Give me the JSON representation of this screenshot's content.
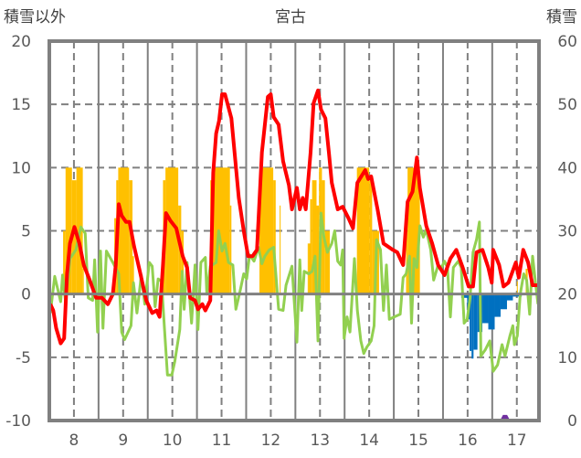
{
  "chart_data": {
    "type": "line",
    "title": "宮古",
    "ylabel_left": "積雪以外",
    "ylabel_right": "積雪",
    "xlim": [
      7.5,
      17.45
    ],
    "ylim_left": [
      -10,
      20
    ],
    "ylim_right": [
      0,
      60
    ],
    "yticks_left": [
      "20",
      "15",
      "10",
      "5",
      "0",
      "-5",
      "-10"
    ],
    "yticks_right": [
      "60",
      "50",
      "40",
      "30",
      "20",
      "10",
      "0"
    ],
    "xticks": [
      "8",
      "9",
      "10",
      "11",
      "12",
      "13",
      "14",
      "15",
      "16",
      "17"
    ],
    "grid": true,
    "colors": {
      "red": "#ff0000",
      "green": "#92d050",
      "orange": "#ffc000",
      "blue": "#0070c0",
      "purple": "#7030a0",
      "axis": "#808080"
    },
    "red_series": [
      [
        7.52,
        -0.8
      ],
      [
        7.58,
        -1.3
      ],
      [
        7.64,
        -2.7
      ],
      [
        7.73,
        -3.9
      ],
      [
        7.8,
        -3.5
      ],
      [
        7.86,
        1.6
      ],
      [
        7.92,
        4
      ],
      [
        8.01,
        5.3
      ],
      [
        8.11,
        4
      ],
      [
        8.2,
        2.3
      ],
      [
        8.32,
        1.1
      ],
      [
        8.45,
        -0.3
      ],
      [
        8.57,
        -0.3
      ],
      [
        8.69,
        -0.8
      ],
      [
        8.79,
        0
      ],
      [
        8.85,
        2.3
      ],
      [
        8.91,
        7.1
      ],
      [
        8.97,
        6.2
      ],
      [
        9.06,
        5.7
      ],
      [
        9.13,
        5.7
      ],
      [
        9.22,
        3.8
      ],
      [
        9.34,
        1.8
      ],
      [
        9.47,
        -0.5
      ],
      [
        9.59,
        -1.5
      ],
      [
        9.68,
        -1.3
      ],
      [
        9.74,
        -1.8
      ],
      [
        9.81,
        2.3
      ],
      [
        9.87,
        6.4
      ],
      [
        9.96,
        5.8
      ],
      [
        10.08,
        5.2
      ],
      [
        10.21,
        3.0
      ],
      [
        10.3,
        2.1
      ],
      [
        10.36,
        -0.3
      ],
      [
        10.46,
        -0.5
      ],
      [
        10.52,
        -1.2
      ],
      [
        10.61,
        -0.8
      ],
      [
        10.67,
        -1.3
      ],
      [
        10.77,
        -0.5
      ],
      [
        10.83,
        9.6
      ],
      [
        10.89,
        12.7
      ],
      [
        10.95,
        13.7
      ],
      [
        11.01,
        15.8
      ],
      [
        11.07,
        15.8
      ],
      [
        11.2,
        13.9
      ],
      [
        11.35,
        7.6
      ],
      [
        11.45,
        5
      ],
      [
        11.54,
        3.0
      ],
      [
        11.63,
        3.0
      ],
      [
        11.72,
        3.5
      ],
      [
        11.82,
        11.2
      ],
      [
        11.94,
        15.6
      ],
      [
        12.0,
        15.8
      ],
      [
        12.06,
        14
      ],
      [
        12.16,
        13.4
      ],
      [
        12.25,
        10.5
      ],
      [
        12.37,
        8.6
      ],
      [
        12.43,
        6.7
      ],
      [
        12.53,
        8.4
      ],
      [
        12.59,
        6.7
      ],
      [
        12.65,
        7.6
      ],
      [
        12.71,
        6.7
      ],
      [
        12.81,
        11.2
      ],
      [
        12.87,
        15.1
      ],
      [
        12.96,
        16.1
      ],
      [
        13.02,
        14.6
      ],
      [
        13.11,
        13.9
      ],
      [
        13.18,
        11.2
      ],
      [
        13.24,
        8.8
      ],
      [
        13.36,
        6.7
      ],
      [
        13.46,
        6.9
      ],
      [
        13.58,
        6
      ],
      [
        13.67,
        5.2
      ],
      [
        13.76,
        8.8
      ],
      [
        13.92,
        9.8
      ],
      [
        13.98,
        9.1
      ],
      [
        14.04,
        9.3
      ],
      [
        14.17,
        6.7
      ],
      [
        14.29,
        4
      ],
      [
        14.48,
        3.5
      ],
      [
        14.57,
        3.3
      ],
      [
        14.69,
        2.3
      ],
      [
        14.78,
        7.3
      ],
      [
        14.88,
        8.1
      ],
      [
        14.97,
        10.8
      ],
      [
        15.03,
        8.4
      ],
      [
        15.16,
        5.4
      ],
      [
        15.28,
        4
      ],
      [
        15.4,
        2.3
      ],
      [
        15.53,
        1.5
      ],
      [
        15.65,
        2.8
      ],
      [
        15.77,
        3.5
      ],
      [
        15.9,
        2.1
      ],
      [
        16.02,
        0.6
      ],
      [
        16.11,
        0.6
      ],
      [
        16.18,
        3.3
      ],
      [
        16.3,
        3.5
      ],
      [
        16.42,
        2.1
      ],
      [
        16.49,
        0.9
      ],
      [
        16.52,
        3.5
      ],
      [
        16.64,
        2.3
      ],
      [
        16.73,
        0.6
      ],
      [
        16.83,
        0.9
      ],
      [
        16.98,
        2.5
      ],
      [
        17.04,
        1.3
      ],
      [
        17.13,
        3.5
      ],
      [
        17.23,
        2.5
      ],
      [
        17.32,
        0.7
      ],
      [
        17.43,
        0.7
      ]
    ],
    "green_series": [
      [
        7.52,
        -1.5
      ],
      [
        7.61,
        1.4
      ],
      [
        7.73,
        -0.6
      ],
      [
        7.77,
        1.5
      ],
      [
        7.83,
        -0.6
      ],
      [
        7.92,
        2.8
      ],
      [
        8.04,
        3.5
      ],
      [
        8.14,
        5.3
      ],
      [
        8.23,
        4.8
      ],
      [
        8.29,
        -0.3
      ],
      [
        8.38,
        -0.5
      ],
      [
        8.42,
        2.7
      ],
      [
        8.48,
        -3
      ],
      [
        8.54,
        3.4
      ],
      [
        8.59,
        -2.7
      ],
      [
        8.66,
        3.4
      ],
      [
        8.79,
        2.5
      ],
      [
        8.91,
        1.6
      ],
      [
        8.97,
        -3
      ],
      [
        9.03,
        -3.6
      ],
      [
        9.16,
        -2.5
      ],
      [
        9.21,
        0.9
      ],
      [
        9.28,
        -1.5
      ],
      [
        9.37,
        1.5
      ],
      [
        9.44,
        -0.8
      ],
      [
        9.53,
        2.5
      ],
      [
        9.59,
        2.2
      ],
      [
        9.65,
        -1
      ],
      [
        9.71,
        1.2
      ],
      [
        9.78,
        1
      ],
      [
        9.84,
        -2.8
      ],
      [
        9.9,
        -6.4
      ],
      [
        9.99,
        -6.4
      ],
      [
        10.05,
        -5.3
      ],
      [
        10.15,
        -2.8
      ],
      [
        10.2,
        1.8
      ],
      [
        10.24,
        -1.2
      ],
      [
        10.3,
        2.5
      ],
      [
        10.39,
        -2.3
      ],
      [
        10.46,
        2.3
      ],
      [
        10.52,
        -2.8
      ],
      [
        10.58,
        2.5
      ],
      [
        10.67,
        2.9
      ],
      [
        10.7,
        0
      ],
      [
        10.77,
        2.2
      ],
      [
        10.89,
        2.5
      ],
      [
        10.94,
        5
      ],
      [
        11.01,
        3.4
      ],
      [
        11.07,
        4
      ],
      [
        11.14,
        2.5
      ],
      [
        11.23,
        2.3
      ],
      [
        11.29,
        -1.2
      ],
      [
        11.38,
        0.3
      ],
      [
        11.45,
        1.6
      ],
      [
        11.51,
        1.2
      ],
      [
        11.57,
        3.1
      ],
      [
        11.66,
        2.6
      ],
      [
        11.75,
        3.7
      ],
      [
        11.82,
        2.4
      ],
      [
        11.88,
        3
      ],
      [
        11.97,
        3.5
      ],
      [
        12.06,
        3.7
      ],
      [
        12.16,
        -1.2
      ],
      [
        12.25,
        -1.3
      ],
      [
        12.31,
        0.7
      ],
      [
        12.43,
        2.2
      ],
      [
        12.53,
        -3.8
      ],
      [
        12.59,
        2.7
      ],
      [
        12.63,
        -1.3
      ],
      [
        12.68,
        1.8
      ],
      [
        12.77,
        1.6
      ],
      [
        12.84,
        1.8
      ],
      [
        12.9,
        3.0
      ],
      [
        12.96,
        -3.7
      ],
      [
        13.02,
        6.4
      ],
      [
        13.08,
        4.5
      ],
      [
        13.15,
        3.3
      ],
      [
        13.24,
        4
      ],
      [
        13.3,
        5
      ],
      [
        13.36,
        2.6
      ],
      [
        13.42,
        2.3
      ],
      [
        13.46,
        3.5
      ],
      [
        13.49,
        -3.5
      ],
      [
        13.55,
        -1.8
      ],
      [
        13.61,
        -3
      ],
      [
        13.7,
        2.8
      ],
      [
        13.76,
        -1.3
      ],
      [
        13.83,
        -3.7
      ],
      [
        13.89,
        -4.7
      ],
      [
        13.95,
        -4.2
      ],
      [
        14.04,
        -3.7
      ],
      [
        14.1,
        -2.5
      ],
      [
        14.15,
        4.3
      ],
      [
        14.23,
        3.5
      ],
      [
        14.29,
        -1.3
      ],
      [
        14.35,
        2.3
      ],
      [
        14.41,
        -2
      ],
      [
        14.51,
        -1.8
      ],
      [
        14.63,
        -1.6
      ],
      [
        14.69,
        1.3
      ],
      [
        14.75,
        1.6
      ],
      [
        14.82,
        3
      ],
      [
        14.86,
        -2.3
      ],
      [
        14.91,
        2.8
      ],
      [
        14.97,
        2.1
      ],
      [
        15.03,
        5.4
      ],
      [
        15.1,
        4.5
      ],
      [
        15.16,
        5.1
      ],
      [
        15.25,
        3.5
      ],
      [
        15.31,
        1.1
      ],
      [
        15.4,
        2.3
      ],
      [
        15.47,
        2.1
      ],
      [
        15.53,
        2.6
      ],
      [
        15.59,
        2.1
      ],
      [
        15.65,
        -1.8
      ],
      [
        15.71,
        2.1
      ],
      [
        15.81,
        2.6
      ],
      [
        15.87,
        2.1
      ],
      [
        15.93,
        -2.3
      ],
      [
        15.99,
        -2
      ],
      [
        16.05,
        -0.3
      ],
      [
        16.11,
        3.3
      ],
      [
        16.18,
        4.3
      ],
      [
        16.24,
        5.7
      ],
      [
        16.27,
        -4.9
      ],
      [
        16.36,
        -4.4
      ],
      [
        16.45,
        -3.7
      ],
      [
        16.52,
        -6.1
      ],
      [
        16.61,
        -5.6
      ],
      [
        16.7,
        -4
      ],
      [
        16.76,
        -4.9
      ],
      [
        16.86,
        -3.3
      ],
      [
        16.92,
        -2.5
      ],
      [
        16.95,
        -4
      ],
      [
        17.01,
        -3.3
      ],
      [
        17.07,
        0
      ],
      [
        17.14,
        1.6
      ],
      [
        17.2,
        1.1
      ],
      [
        17.26,
        -1.6
      ],
      [
        17.32,
        3
      ],
      [
        17.38,
        0.9
      ],
      [
        17.43,
        -0.8
      ]
    ],
    "orange_bars": [
      [
        7.78,
        7.83,
        5
      ],
      [
        7.83,
        7.96,
        10
      ],
      [
        7.96,
        8.05,
        9
      ],
      [
        8.05,
        8.18,
        10
      ],
      [
        8.18,
        8.2,
        2
      ],
      [
        8.82,
        8.86,
        6
      ],
      [
        8.86,
        8.9,
        9
      ],
      [
        8.9,
        9.12,
        10
      ],
      [
        9.12,
        9.19,
        9
      ],
      [
        9.19,
        9.22,
        3
      ],
      [
        9.81,
        9.86,
        9
      ],
      [
        9.86,
        10.12,
        10
      ],
      [
        10.12,
        10.18,
        7
      ],
      [
        10.18,
        10.23,
        5
      ],
      [
        10.77,
        10.8,
        9
      ],
      [
        10.8,
        11.17,
        10
      ],
      [
        11.17,
        11.2,
        7
      ],
      [
        11.77,
        12.05,
        10
      ],
      [
        12.05,
        12.1,
        9
      ],
      [
        12.18,
        12.2,
        7
      ],
      [
        12.75,
        12.77,
        4
      ],
      [
        12.77,
        12.8,
        4
      ],
      [
        12.8,
        12.84,
        7.5
      ],
      [
        12.84,
        12.93,
        9
      ],
      [
        12.93,
        12.98,
        7
      ],
      [
        12.98,
        13.04,
        10
      ],
      [
        13.04,
        13.1,
        9
      ],
      [
        13.1,
        13.2,
        5
      ],
      [
        13.75,
        14.0,
        10
      ],
      [
        14.0,
        14.06,
        9
      ],
      [
        14.06,
        14.2,
        5
      ],
      [
        14.75,
        14.78,
        7
      ],
      [
        14.78,
        15.03,
        10
      ],
      [
        17.0,
        17.02,
        1
      ],
      [
        17.18,
        17.22,
        2
      ]
    ],
    "blue_bars": [
      [
        15.87,
        15.99,
        -0.3
      ],
      [
        15.99,
        16.04,
        -2
      ],
      [
        16.04,
        16.08,
        -4.5
      ],
      [
        16.08,
        16.12,
        -5.1
      ],
      [
        16.12,
        16.2,
        -4.4
      ],
      [
        16.2,
        16.3,
        -3
      ],
      [
        16.3,
        16.42,
        -2.3
      ],
      [
        16.42,
        16.55,
        -2.8
      ],
      [
        16.55,
        16.67,
        -1.8
      ],
      [
        16.67,
        16.8,
        -1.2
      ],
      [
        16.8,
        16.92,
        -0.5
      ],
      [
        16.92,
        17.1,
        -0.2
      ]
    ],
    "purple_series_right": [
      [
        7.5,
        0
      ],
      [
        16.7,
        0
      ],
      [
        16.74,
        0.6
      ],
      [
        16.78,
        0.6
      ],
      [
        16.82,
        0
      ],
      [
        17.45,
        0
      ]
    ]
  }
}
